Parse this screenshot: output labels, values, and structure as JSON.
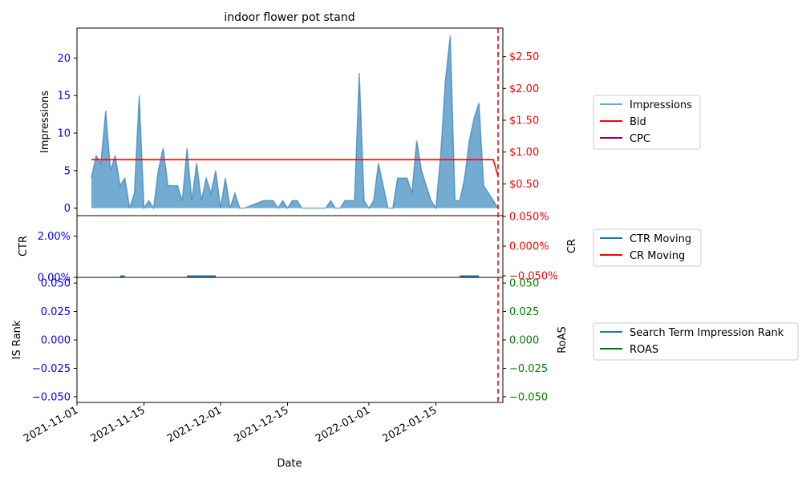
{
  "chart_data": [
    {
      "type": "area",
      "title": "indoor flower pot stand",
      "ylabel": "Impressions",
      "y2label": "",
      "xlim": [
        "2021-11-01",
        "2022-01-29"
      ],
      "ylim": [
        -1,
        24
      ],
      "y2lim": [
        0,
        2.95
      ],
      "yticks": [
        0,
        5,
        10,
        15,
        20
      ],
      "y2ticks": [
        0.5,
        1.0,
        1.5,
        2.0,
        2.5
      ],
      "y2tick_labels": [
        "$0.50",
        "$1.00",
        "$1.50",
        "$2.00",
        "$2.50"
      ],
      "colors": {
        "impressions": "#1f77b4",
        "bid": "#ff0000",
        "cpc": "#800080",
        "left_axis": "#0000ff",
        "right_axis": "#ff0000"
      },
      "series": [
        {
          "name": "Impressions",
          "x": [
            "2021-11-04",
            "2021-11-05",
            "2021-11-06",
            "2021-11-07",
            "2021-11-08",
            "2021-11-09",
            "2021-11-10",
            "2021-11-11",
            "2021-11-12",
            "2021-11-13",
            "2021-11-14",
            "2021-11-15",
            "2021-11-16",
            "2021-11-17",
            "2021-11-18",
            "2021-11-19",
            "2021-11-20",
            "2021-11-21",
            "2021-11-22",
            "2021-11-23",
            "2021-11-24",
            "2021-11-25",
            "2021-11-26",
            "2021-11-27",
            "2021-11-28",
            "2021-11-29",
            "2021-11-30",
            "2021-12-01",
            "2021-12-02",
            "2021-12-03",
            "2021-12-04",
            "2021-12-05",
            "2021-12-06",
            "2021-12-07",
            "2021-12-08",
            "2021-12-09",
            "2021-12-10",
            "2021-12-11",
            "2021-12-12",
            "2021-12-13",
            "2021-12-14",
            "2021-12-15",
            "2021-12-16",
            "2021-12-17",
            "2021-12-18",
            "2021-12-19",
            "2021-12-20",
            "2021-12-21",
            "2021-12-22",
            "2021-12-23",
            "2021-12-24",
            "2021-12-25",
            "2021-12-26",
            "2021-12-27",
            "2021-12-28",
            "2021-12-29",
            "2021-12-30",
            "2021-12-31",
            "2022-01-01",
            "2022-01-02",
            "2022-01-03",
            "2022-01-04",
            "2022-01-05",
            "2022-01-06",
            "2022-01-07",
            "2022-01-08",
            "2022-01-09",
            "2022-01-10",
            "2022-01-11",
            "2022-01-12",
            "2022-01-13",
            "2022-01-14",
            "2022-01-15",
            "2022-01-16",
            "2022-01-17",
            "2022-01-18",
            "2022-01-19",
            "2022-01-20",
            "2022-01-21",
            "2022-01-22",
            "2022-01-23",
            "2022-01-24",
            "2022-01-25",
            "2022-01-26",
            "2022-01-27",
            "2022-01-28"
          ],
          "values": [
            4,
            7,
            6,
            13,
            5,
            7,
            3,
            4,
            0,
            2,
            15,
            0,
            1,
            0,
            5,
            8,
            3,
            3,
            3,
            1,
            8,
            1,
            6,
            1,
            4,
            2,
            5,
            0,
            4,
            0,
            2,
            0,
            0,
            0.25,
            0.5,
            0.75,
            1,
            1,
            1,
            0,
            1,
            0,
            1,
            1,
            0,
            0,
            0,
            0,
            0,
            0,
            1,
            0,
            0,
            1,
            1,
            1,
            18,
            1,
            0,
            1,
            6,
            3,
            0,
            0,
            4,
            4,
            4,
            2,
            9,
            5,
            3,
            1,
            0,
            7,
            17,
            23,
            1,
            1,
            4,
            9,
            12,
            14,
            3,
            2,
            1,
            0
          ]
        },
        {
          "name": "Bid",
          "axis": "right",
          "x": [
            "2021-11-04",
            "2022-01-27",
            "2022-01-28"
          ],
          "values": [
            0.88,
            0.88,
            0.62
          ]
        },
        {
          "name": "CPC",
          "axis": "right",
          "x": [],
          "values": []
        }
      ],
      "legend": [
        "Impressions",
        "Bid",
        "CPC"
      ],
      "legend_placement": "right"
    },
    {
      "type": "line",
      "ylabel": "CTR",
      "y2label": "CR",
      "ylim": [
        0,
        0.03
      ],
      "yticks": [
        0,
        0.02
      ],
      "ytick_labels": [
        "0.00%",
        "2.00%"
      ],
      "y2lim": [
        -0.05,
        0.05
      ],
      "y2ticks": [
        -0.05,
        0,
        0.05
      ],
      "y2tick_labels": [
        "−0.050%",
        "0.000%",
        "0.050%"
      ],
      "colors": {
        "ctr": "#1f77b4",
        "cr": "#ff0000",
        "left_axis": "#0000ff",
        "right_axis": "#ff0000"
      },
      "series": [
        {
          "name": "CTR Moving",
          "segments": [
            {
              "x": [
                "2021-11-10",
                "2021-11-11"
              ],
              "values": [
                0,
                0
              ]
            },
            {
              "x": [
                "2021-11-24",
                "2021-11-30"
              ],
              "values": [
                0,
                0
              ]
            },
            {
              "x": [
                "2022-01-20",
                "2022-01-24"
              ],
              "values": [
                0,
                0
              ]
            }
          ]
        },
        {
          "name": "CR Moving",
          "segments": []
        }
      ],
      "legend": [
        "CTR Moving",
        "CR Moving"
      ],
      "legend_placement": "right"
    },
    {
      "type": "line",
      "xlabel": "Date",
      "ylabel": "IS Rank",
      "y2label": "RoAS",
      "ylim": [
        -0.055,
        0.055
      ],
      "yticks": [
        -0.05,
        -0.025,
        0,
        0.025,
        0.05
      ],
      "ytick_labels": [
        "−0.050",
        "−0.025",
        "0.000",
        "0.025",
        "0.050"
      ],
      "y2lim": [
        -0.055,
        0.055
      ],
      "y2ticks": [
        -0.05,
        -0.025,
        0,
        0.025,
        0.05
      ],
      "y2tick_labels": [
        "−0.050",
        "−0.025",
        "0.000",
        "0.025",
        "0.050"
      ],
      "colors": {
        "is_rank": "#1f77b4",
        "roas": "#008000",
        "left_axis": "#0000ff",
        "right_axis": "#008000"
      },
      "series": [
        {
          "name": "Search Term Impression Rank",
          "values": []
        },
        {
          "name": "ROAS",
          "values": []
        }
      ],
      "xticks": [
        "2021-11-01",
        "2021-11-15",
        "2021-12-01",
        "2021-12-15",
        "2022-01-01",
        "2022-01-15"
      ],
      "xtick_labels": [
        "2021-11-01",
        "2021-11-15",
        "2021-12-01",
        "2021-12-15",
        "2022-01-01",
        "2022-01-15"
      ],
      "legend": [
        "Search Term Impression Rank",
        "ROAS"
      ],
      "legend_placement": "right"
    }
  ],
  "reference_line": {
    "x": "2022-01-28",
    "color": "#ff0000",
    "style": "dashed"
  }
}
